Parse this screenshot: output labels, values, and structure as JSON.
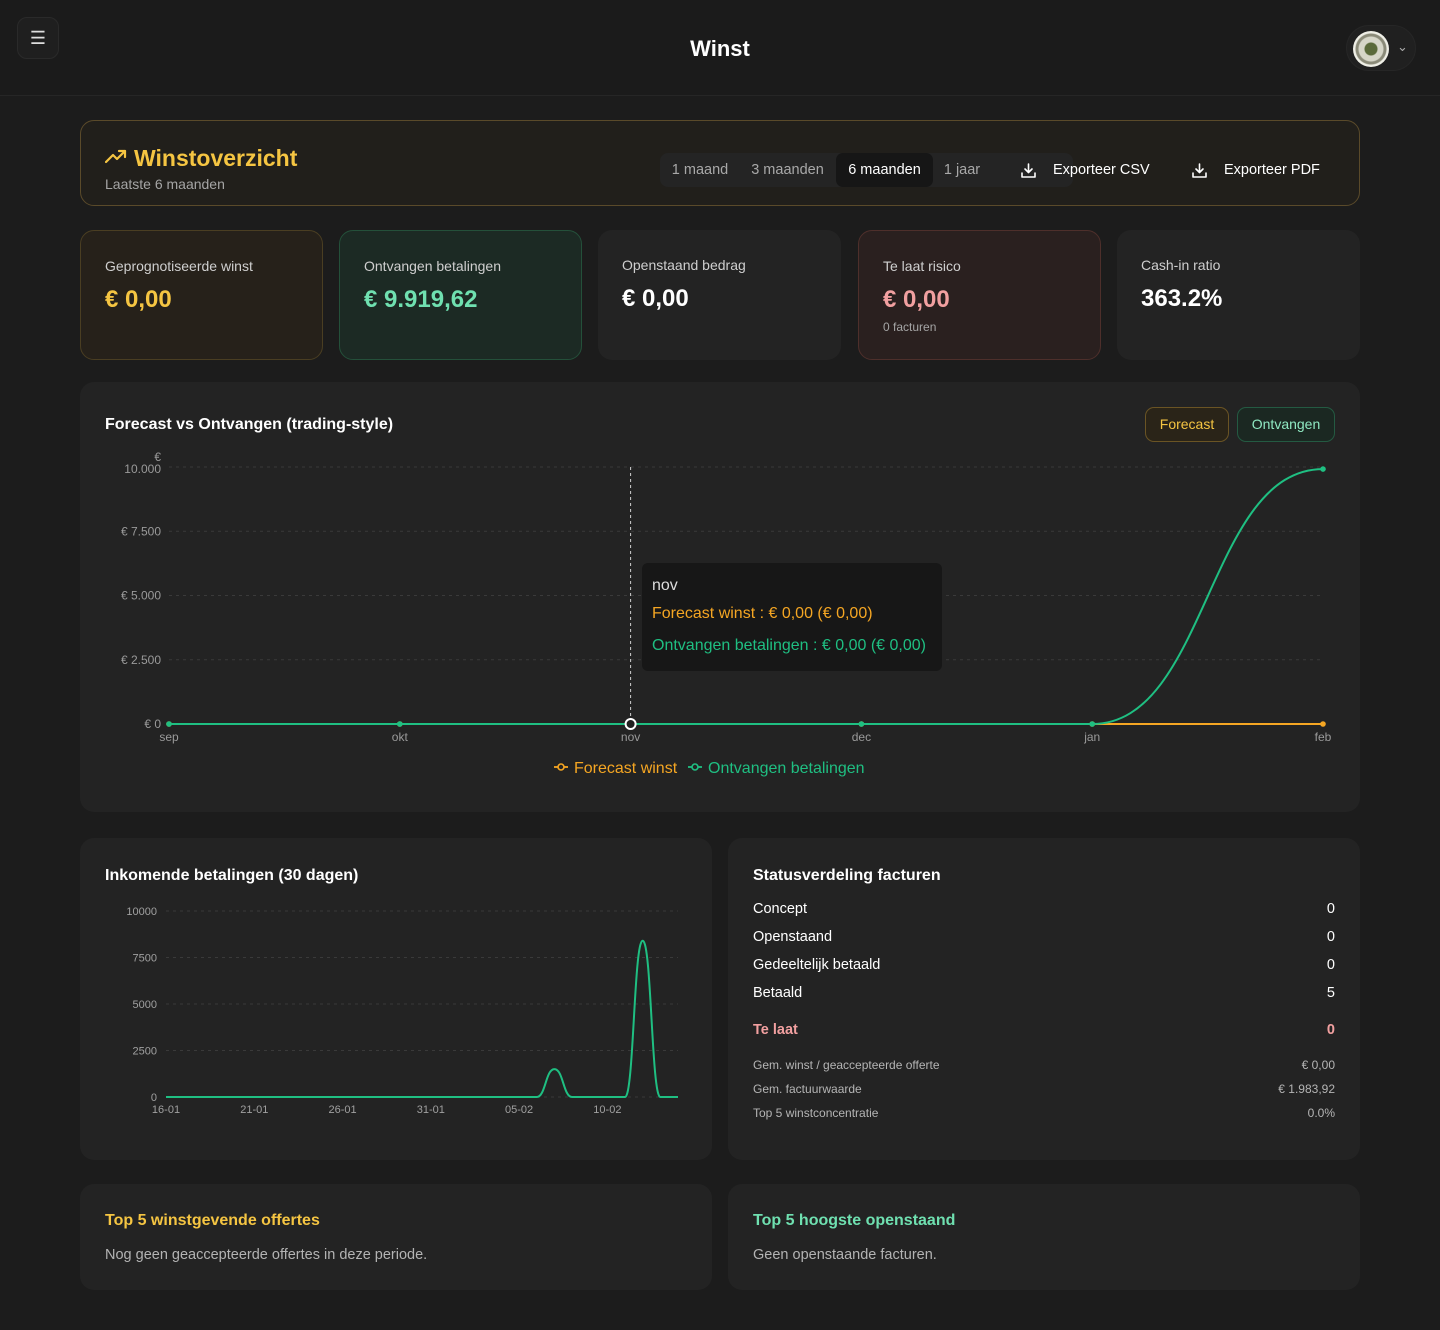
{
  "header": {
    "title": "Winst"
  },
  "overview": {
    "title": "Winstoverzicht",
    "subtitle": "Laatste 6 maanden",
    "ranges": [
      "1 maand",
      "3 maanden",
      "6 maanden",
      "1 jaar"
    ],
    "active_range": "6 maanden",
    "export_csv": "Exporteer CSV",
    "export_pdf": "Exporteer PDF"
  },
  "kpis": [
    {
      "label": "Geprognotiseerde winst",
      "value": "€ 0,00"
    },
    {
      "label": "Ontvangen betalingen",
      "value": "€ 9.919,62"
    },
    {
      "label": "Openstaand bedrag",
      "value": "€ 0,00"
    },
    {
      "label": "Te laat risico",
      "value": "€ 0,00",
      "sub": "0 facturen"
    },
    {
      "label": "Cash-in ratio",
      "value": "363.2%"
    }
  ],
  "colors": {
    "forecast": "#f5a623",
    "received": "#1fbf82",
    "gold": "#f5c542",
    "mint": "#6fe0b0",
    "late": "#f2a0a0"
  },
  "forecast_chart": {
    "title": "Forecast vs Ontvangen (trading-style)",
    "toggle_forecast": "Forecast",
    "toggle_received": "Ontvangen",
    "tooltip": {
      "month": "nov",
      "forecast_line": "Forecast winst : € 0,00 (€ 0,00)",
      "received_line": "Ontvangen betalingen : € 0,00 (€ 0,00)"
    }
  },
  "payments_chart": {
    "title": "Inkomende betalingen (30 dagen)"
  },
  "status": {
    "title": "Statusverdeling facturen",
    "rows": [
      {
        "label": "Concept",
        "value": "0"
      },
      {
        "label": "Openstaand",
        "value": "0"
      },
      {
        "label": "Gedeeltelijk betaald",
        "value": "0"
      },
      {
        "label": "Betaald",
        "value": "5"
      }
    ],
    "late": {
      "label": "Te laat",
      "value": "0"
    },
    "stats": [
      {
        "label": "Gem. winst / geaccepteerde offerte",
        "value": "€ 0,00"
      },
      {
        "label": "Gem. factuurwaarde",
        "value": "€ 1.983,92"
      },
      {
        "label": "Top 5 winstconcentratie",
        "value": "0.0%"
      }
    ]
  },
  "top_offers": {
    "title": "Top 5 winstgevende offertes",
    "empty": "Nog geen geaccepteerde offertes in deze periode."
  },
  "top_outstanding": {
    "title": "Top 5 hoogste openstaand",
    "empty": "Geen openstaande facturen."
  },
  "chart_data": [
    {
      "type": "line",
      "title": "Forecast vs Ontvangen (trading-style)",
      "categories": [
        "sep",
        "okt",
        "nov",
        "dec",
        "jan",
        "feb"
      ],
      "y_ticks": [
        "€ 0",
        "€ 2.500",
        "€ 5.000",
        "€ 7.500",
        "€ 10.000"
      ],
      "y_tick_values": [
        0,
        2500,
        5000,
        7500,
        10000
      ],
      "ylim": [
        0,
        10000
      ],
      "series": [
        {
          "name": "Forecast winst",
          "values": [
            0,
            0,
            0,
            0,
            0,
            0
          ]
        },
        {
          "name": "Ontvangen betalingen",
          "values": [
            0,
            0,
            0,
            0,
            0,
            9919.62
          ]
        }
      ],
      "legend": "bottom",
      "grid": true
    },
    {
      "type": "line",
      "title": "Inkomende betalingen (30 dagen)",
      "x_ticks": [
        "16-01",
        "21-01",
        "26-01",
        "31-01",
        "05-02",
        "10-02"
      ],
      "x_tick_index": [
        0,
        5,
        10,
        15,
        20,
        25
      ],
      "y_ticks": [
        "0",
        "2500",
        "5000",
        "7500",
        "10000"
      ],
      "y_tick_values": [
        0,
        2500,
        5000,
        7500,
        10000
      ],
      "ylim": [
        0,
        10000
      ],
      "x_count": 30,
      "series": [
        {
          "name": "Inkomende betalingen",
          "values": [
            0,
            0,
            0,
            0,
            0,
            0,
            0,
            0,
            0,
            0,
            0,
            0,
            0,
            0,
            0,
            0,
            0,
            0,
            0,
            0,
            0,
            0,
            1500,
            0,
            0,
            0,
            0,
            8400,
            0,
            0
          ]
        }
      ],
      "grid": true
    }
  ]
}
